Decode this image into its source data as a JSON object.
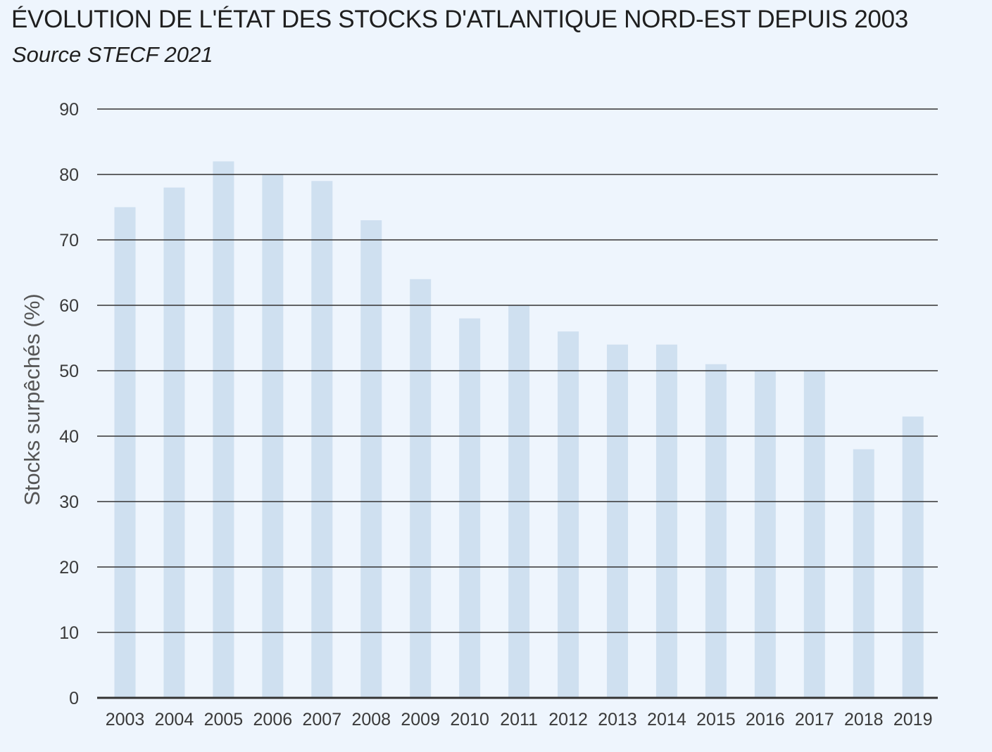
{
  "title": "ÉVOLUTION DE L'ÉTAT DES STOCKS D'ATLANTIQUE NORD-EST DEPUIS 2003",
  "subtitle": "Source STECF 2021",
  "chart_data": {
    "type": "bar",
    "title": "ÉVOLUTION DE L'ÉTAT DES STOCKS D'ATLANTIQUE NORD-EST DEPUIS 2003",
    "subtitle": "Source STECF 2021",
    "xlabel": "",
    "ylabel": "Stocks surpêchés (%)",
    "categories": [
      "2003",
      "2004",
      "2005",
      "2006",
      "2007",
      "2008",
      "2009",
      "2010",
      "2011",
      "2012",
      "2013",
      "2014",
      "2015",
      "2016",
      "2017",
      "2018",
      "2019"
    ],
    "values": [
      75,
      78,
      82,
      80,
      79,
      73,
      64,
      58,
      60,
      56,
      54,
      54,
      51,
      50,
      50,
      38,
      43
    ],
    "ylim": [
      0,
      90
    ],
    "yticks": [
      "0",
      "10",
      "20",
      "30",
      "40",
      "50",
      "60",
      "70",
      "80",
      "90"
    ],
    "grid": true,
    "legend": "none",
    "colors": {
      "bar": "#cfe0f0",
      "grid": "#333333",
      "background": "#eef5fd"
    }
  }
}
